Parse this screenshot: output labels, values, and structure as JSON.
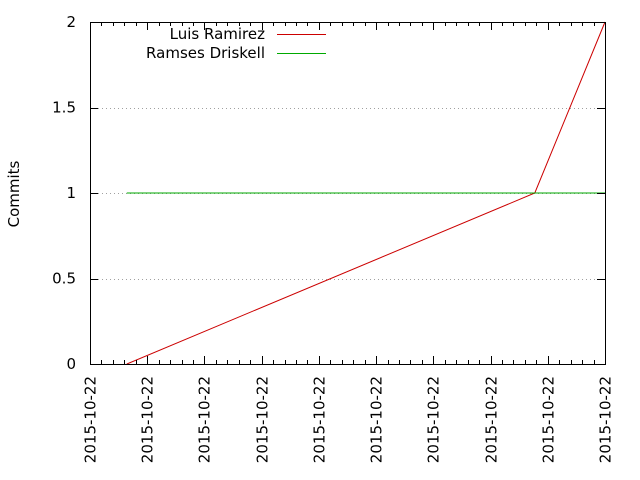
{
  "chart_data": {
    "type": "line",
    "ylabel": "Commits",
    "ylim": [
      0,
      2
    ],
    "y_ticks": [
      0,
      0.5,
      1,
      1.5,
      2
    ],
    "y_tick_labels": [
      "0",
      "0.5",
      "1",
      "1.5",
      "2"
    ],
    "x_tick_labels": [
      "2015-10-22",
      "2015-10-22",
      "2015-10-22",
      "2015-10-22",
      "2015-10-22",
      "2015-10-22",
      "2015-10-22",
      "2015-10-22",
      "2015-10-22",
      "2015-10-22"
    ],
    "grid": "horizontal-dotted",
    "legend_position": "top-left",
    "series": [
      {
        "name": "Luis Ramirez",
        "color": "#cc0000",
        "points": [
          [
            0.0714,
            0
          ],
          [
            0.8636,
            1
          ],
          [
            1.0,
            2
          ]
        ]
      },
      {
        "name": "Ramses Driskell",
        "color": "#00aa00",
        "points": [
          [
            0.0714,
            1
          ],
          [
            1.0,
            1
          ]
        ]
      }
    ]
  }
}
